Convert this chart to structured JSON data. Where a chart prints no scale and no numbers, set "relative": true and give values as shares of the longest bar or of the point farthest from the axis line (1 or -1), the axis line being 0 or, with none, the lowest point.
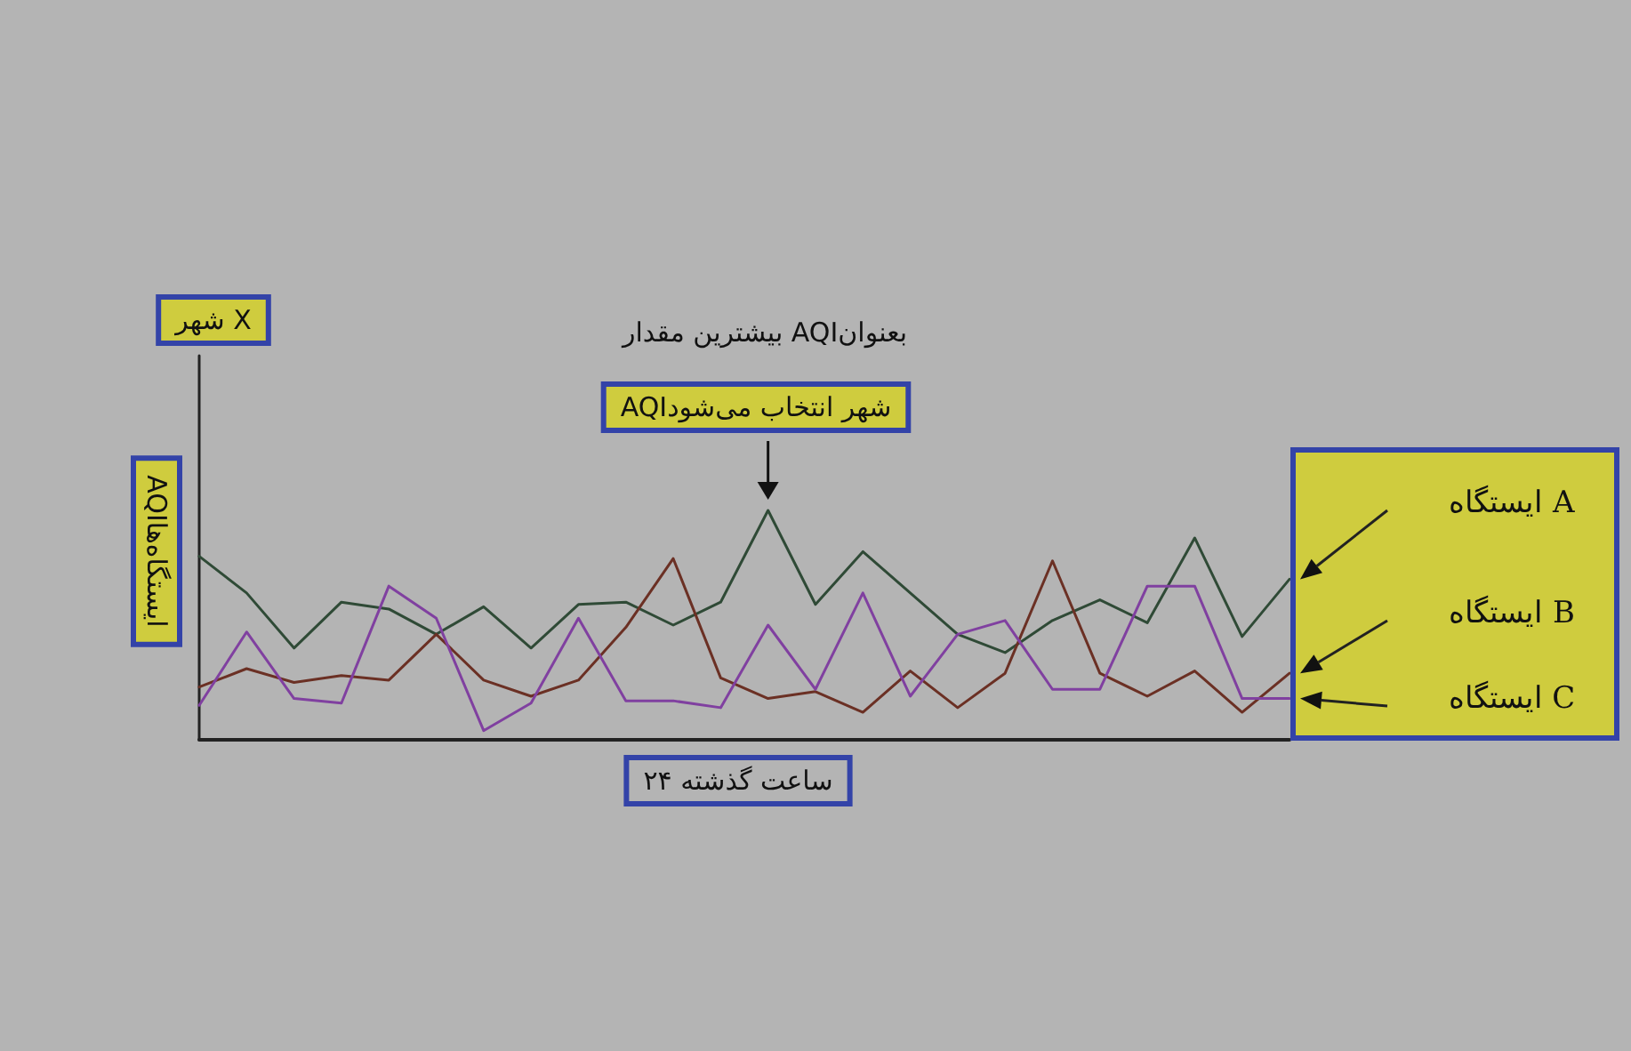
{
  "chart_data": {
    "type": "line",
    "relative": true,
    "title": "شهر X",
    "xlabel": "۲۴ ساعت گذشته",
    "ylabel": "AQIایستگاه‌ها",
    "annotations": [
      "بیشترین مقدار AQIبعنوان",
      "AQIشهر انتخاب می‌شود"
    ],
    "categories": [
      null,
      null,
      null,
      null,
      null,
      null,
      null,
      null,
      null,
      null,
      null,
      null,
      null,
      null,
      null,
      null,
      null,
      null,
      null,
      null,
      null,
      null,
      null,
      null
    ],
    "series": [
      {
        "name": "ایستگاه A",
        "color": "#2f4a36",
        "values": [
          0.8,
          0.64,
          0.4,
          0.6,
          0.57,
          0.46,
          0.58,
          0.4,
          0.59,
          0.6,
          0.5,
          0.6,
          1,
          0.59,
          0.82,
          0.64,
          0.46,
          0.38,
          0.52,
          0.61,
          0.51,
          0.88,
          0.45,
          0.7
        ]
      },
      {
        "name": "ایستگاه B",
        "color": "#6b3024",
        "values": [
          0.23,
          0.31,
          0.25,
          0.28,
          0.26,
          0.46,
          0.26,
          0.19,
          0.26,
          0.49,
          0.79,
          0.27,
          0.18,
          0.21,
          0.12,
          0.3,
          0.14,
          0.29,
          0.78,
          0.29,
          0.19,
          0.3,
          0.12,
          0.29
        ]
      },
      {
        "name": "ایستگاه C",
        "color": "#8040a0",
        "values": [
          0.15,
          0.47,
          0.18,
          0.16,
          0.67,
          0.53,
          0.04,
          0.16,
          0.53,
          0.17,
          0.17,
          0.14,
          0.5,
          0.22,
          0.64,
          0.19,
          0.46,
          0.52,
          0.22,
          0.22,
          0.67,
          0.67,
          0.18,
          0.18
        ]
      }
    ],
    "legend": false,
    "grid": false,
    "tick_labels": false,
    "marker": "none",
    "line_style": "solid"
  }
}
